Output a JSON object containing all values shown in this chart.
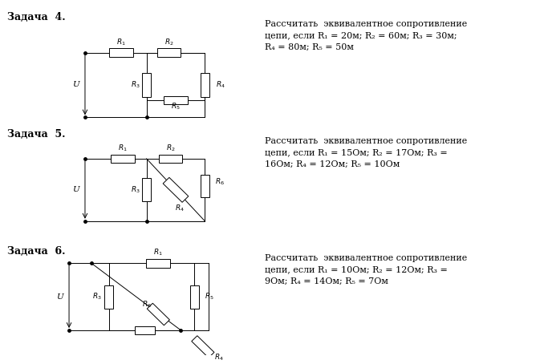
{
  "bg_color": "#ffffff",
  "tasks": [
    {
      "label": "Задача  4.",
      "text": "Рассчитать  эквивалентное сопротивление\nцепи, если R₁ = 20м; R₂ = 60м; R₃ = 30м;\nR₄ = 80м; R₅ = 50м"
    },
    {
      "label": "Задача  5.",
      "text": "Рассчитать  эквивалентное сопротивление\nцепи, если R₁ = 15Ом; R₂ = 17Ом; R₃ =\n16Ом; R₄ = 12Ом; R₅ = 10Ом"
    },
    {
      "label": "Задача  6.",
      "text": "Рассчитать  эквивалентное сопротивление\nцепи, если R₁ = 10Ом; R₂ = 12Ом; R₃ =\n9Ом; R₄ = 14Ом; R₅ = 7Ом"
    }
  ]
}
